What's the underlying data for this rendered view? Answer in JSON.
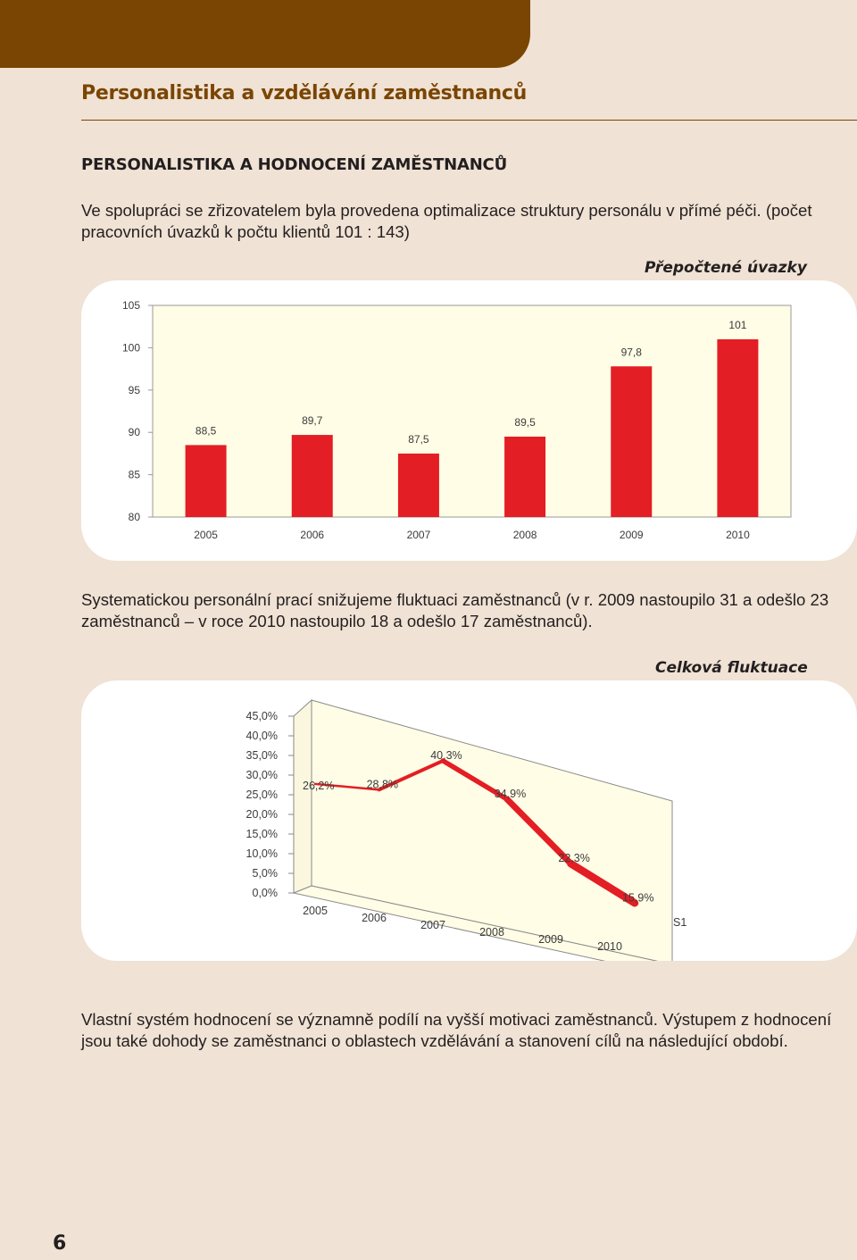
{
  "header": {
    "section_title": "Personalistika a vzdělávání  zaměstnanců",
    "subheading": "PERSONALISTIKA A HODNOCENÍ ZAMĚSTNANCŮ"
  },
  "paragraphs": {
    "intro": "Ve spolupráci se zřizovatelem byla provedena optimalizace struktury personálu v přímé péči. (počet pracovních úvazků k počtu klientů 101 : 143)",
    "fluktuace": "Systematickou personální prací snižujeme fluktuaci zaměstnanců (v r. 2009 nastoupilo 31 a odešlo 23 zaměstnanců – v roce 2010 nastoupilo 18 a odešlo 17 zaměstnanců).",
    "hodnoceni": "Vlastní systém hodnocení se významně podílí na vyšší motivaci zaměstnanců. Výstupem z hodnocení jsou také dohody se zaměstnanci  o oblastech vzdělávání a stanovení cílů na následující období."
  },
  "colors": {
    "brown": "#7a4503",
    "background": "#f0e2d4",
    "bar_red": "#e31e24",
    "plot_fill": "#fffde6"
  },
  "chart_data": [
    {
      "type": "bar",
      "title": "Přepočtené úvazky",
      "categories": [
        "2005",
        "2006",
        "2007",
        "2008",
        "2009",
        "2010"
      ],
      "values": [
        88.5,
        89.7,
        87.5,
        89.5,
        97.8,
        101
      ],
      "value_labels": [
        "88,5",
        "89,7",
        "87,5",
        "89,5",
        "97,8",
        "101"
      ],
      "ylim": [
        80,
        105
      ],
      "yticks": [
        80,
        85,
        90,
        95,
        100,
        105
      ],
      "ytick_labels": [
        "80",
        "85",
        "90",
        "95",
        "100",
        "105"
      ],
      "grid": false,
      "color": "#e31e24"
    },
    {
      "type": "line",
      "title": "Celková fluktuace",
      "categories": [
        "2005",
        "2006",
        "2007",
        "2008",
        "2009",
        "2010"
      ],
      "values": [
        26.2,
        28.8,
        40.3,
        34.9,
        22.3,
        15.9
      ],
      "value_labels": [
        "26,2%",
        "28,8%",
        "40,3%",
        "34,9%",
        "22,3%",
        "15,9%"
      ],
      "ylim": [
        0,
        45
      ],
      "yticks": [
        0,
        5,
        10,
        15,
        20,
        25,
        30,
        35,
        40,
        45
      ],
      "ytick_labels": [
        "0,0%",
        "5,0%",
        "10,0%",
        "15,0%",
        "20,0%",
        "25,0%",
        "30,0%",
        "35,0%",
        "40,0%",
        "45,0%"
      ],
      "depth_label": "S1",
      "perspective": "3d",
      "color": "#e31e24"
    }
  ],
  "page": {
    "number": "6"
  }
}
